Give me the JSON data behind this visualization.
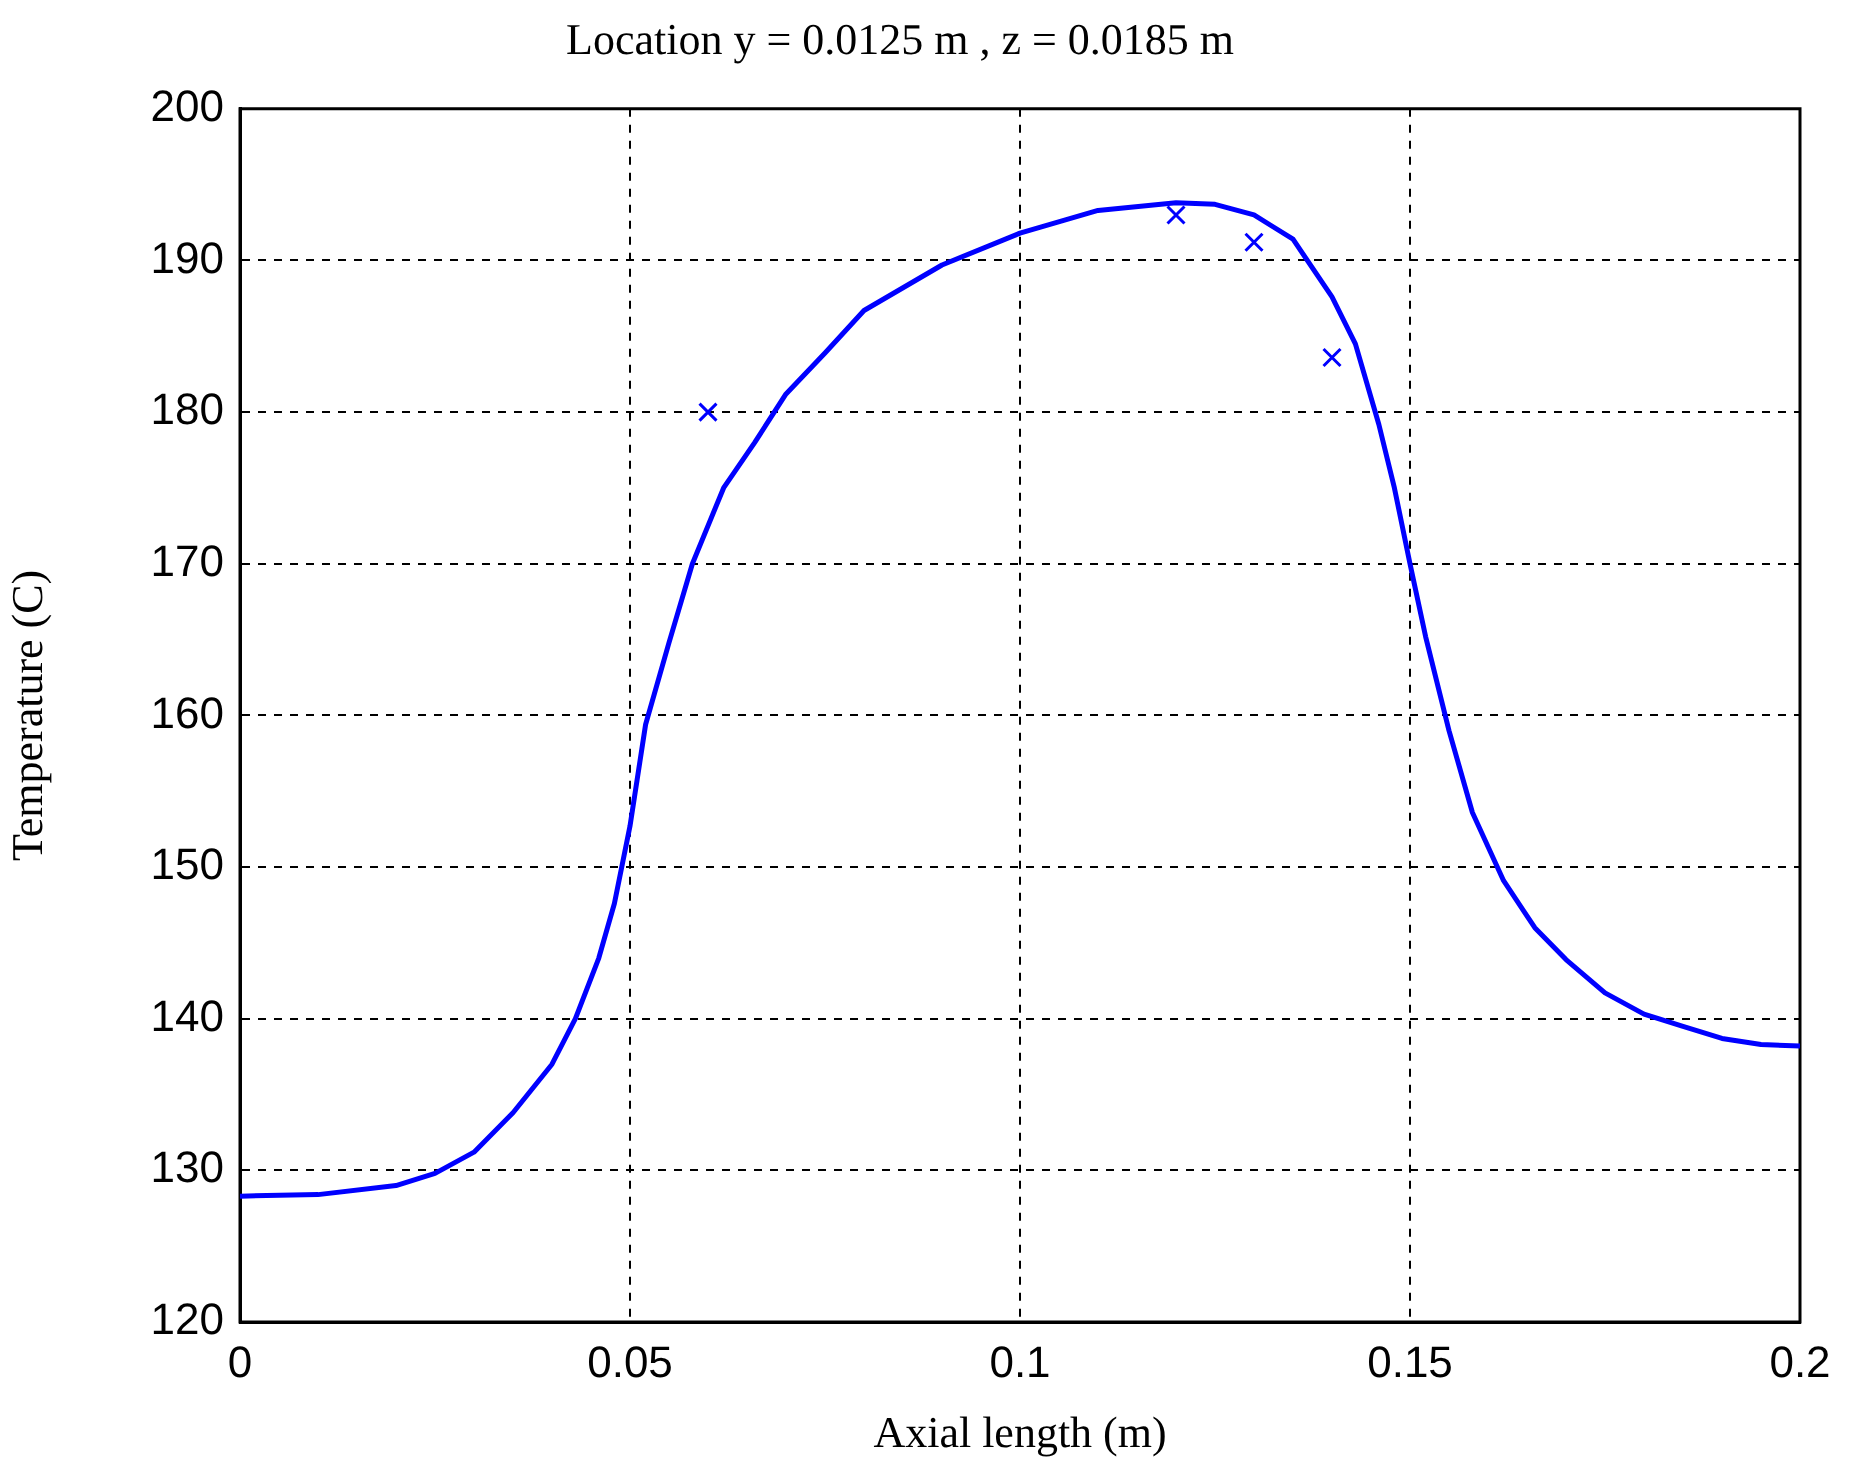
{
  "chart_data": {
    "type": "line",
    "title": "Location y = 0.0125 m , z = 0.0185 m",
    "xlabel": "Axial length (m)",
    "ylabel": "Temperature (C)",
    "xlim": [
      0,
      0.2
    ],
    "xticks": [
      0,
      0.05,
      0.1,
      0.15,
      0.2
    ],
    "ylim": [
      120,
      200
    ],
    "yticks": [
      120,
      130,
      140,
      150,
      160,
      170,
      180,
      190,
      200
    ],
    "grid": true,
    "legend": false,
    "series": [
      {
        "type": "line",
        "color": "#0000ff",
        "marker": "none",
        "line_style": "solid",
        "x": [
          0,
          0.01,
          0.02,
          0.025,
          0.03,
          0.035,
          0.04,
          0.043,
          0.046,
          0.048,
          0.05,
          0.052,
          0.055,
          0.058,
          0.062,
          0.066,
          0.07,
          0.075,
          0.08,
          0.09,
          0.1,
          0.11,
          0.12,
          0.125,
          0.13,
          0.135,
          0.14,
          0.143,
          0.146,
          0.148,
          0.15,
          0.152,
          0.155,
          0.158,
          0.162,
          0.166,
          0.17,
          0.175,
          0.18,
          0.185,
          0.19,
          0.195,
          0.2
        ],
        "values": [
          128.3,
          128.4,
          129,
          129.8,
          131.2,
          133.8,
          137,
          140,
          144,
          147.6,
          152.7,
          159.4,
          164.8,
          170,
          175,
          178,
          181.2,
          183.9,
          186.7,
          189.7,
          191.8,
          193.3,
          193.8,
          193.7,
          193,
          191.4,
          187.6,
          184.5,
          179.2,
          175,
          170,
          165.2,
          159,
          153.6,
          149.1,
          146,
          143.9,
          141.7,
          140.3,
          139.5,
          138.7,
          138.3,
          138.2
        ]
      },
      {
        "type": "scatter",
        "color": "#0000ff",
        "marker": "cross",
        "x": [
          0.06,
          0.12,
          0.13,
          0.14
        ],
        "values": [
          180,
          193,
          191.2,
          183.6
        ]
      }
    ]
  }
}
